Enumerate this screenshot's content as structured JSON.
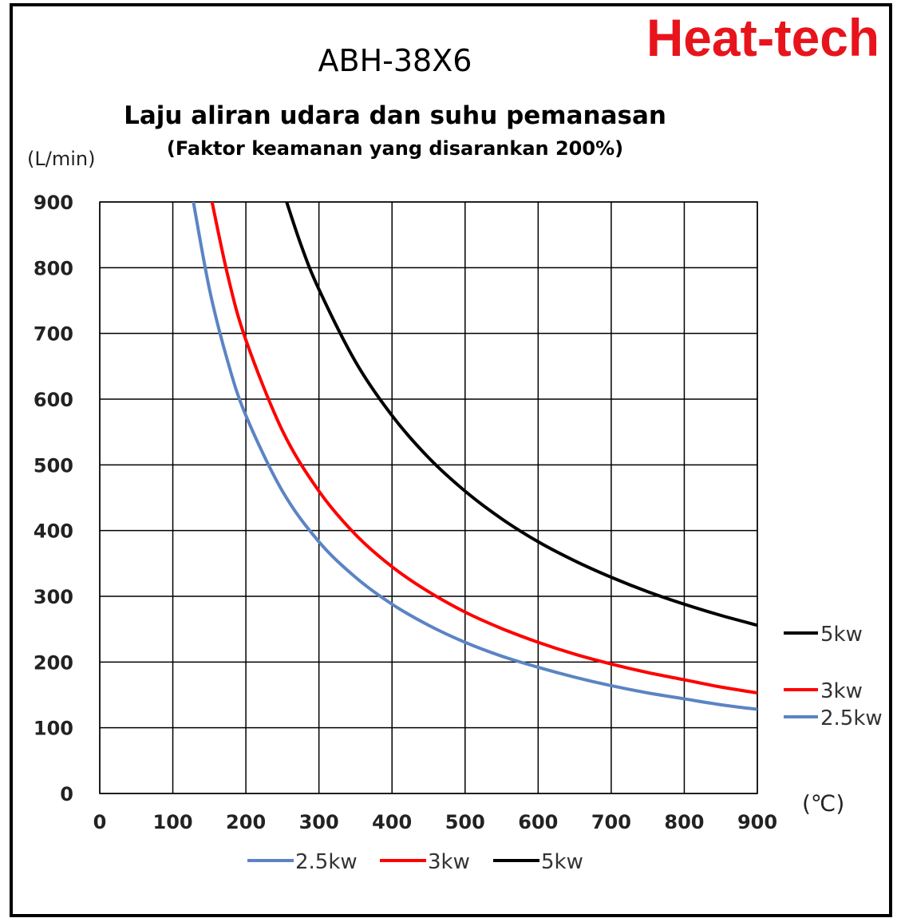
{
  "brand": {
    "text": "Heat-tech",
    "color": "#e8141c"
  },
  "chart_data": {
    "type": "line",
    "title": "ABH-38X6",
    "subtitle": "Laju aliran udara dan suhu pemanasan",
    "note": "(Faktor keamanan yang disarankan 200%)",
    "xlabel": "(℃)",
    "ylabel": "(L/min)",
    "xlim": [
      0,
      900
    ],
    "ylim": [
      0,
      900
    ],
    "xticks": [
      "0",
      "100",
      "200",
      "300",
      "400",
      "500",
      "600",
      "700",
      "800",
      "900"
    ],
    "yticks": [
      "0",
      "100",
      "200",
      "300",
      "400",
      "500",
      "600",
      "700",
      "800",
      "900"
    ],
    "grid": true,
    "legend": "bottom",
    "series": [
      {
        "name": "2.5kw",
        "color": "#5b84c4",
        "end_label": "2.5kw",
        "x": [
          125,
          150,
          175,
          200,
          250,
          300,
          350,
          400,
          450,
          500,
          550,
          600,
          650,
          700,
          750,
          800,
          850,
          900
        ],
        "y": [
          920,
          768,
          658,
          575,
          460,
          383,
          329,
          288,
          256,
          230,
          209,
          192,
          177,
          164,
          153,
          144,
          135,
          128
        ]
      },
      {
        "name": "3kw",
        "color": "#ff0000",
        "end_label": "3kw",
        "x": [
          150,
          175,
          200,
          250,
          300,
          350,
          400,
          450,
          500,
          550,
          600,
          650,
          700,
          750,
          800,
          850,
          900
        ],
        "y": [
          920,
          789,
          690,
          552,
          460,
          394,
          345,
          307,
          276,
          251,
          230,
          212,
          197,
          184,
          173,
          162,
          153
        ]
      },
      {
        "name": "5kw",
        "color": "#000000",
        "end_label": "5kw",
        "x": [
          250,
          275,
          300,
          350,
          400,
          450,
          500,
          550,
          600,
          650,
          700,
          750,
          800,
          850,
          900
        ],
        "y": [
          920,
          836,
          767,
          657,
          575,
          511,
          460,
          418,
          383,
          354,
          329,
          307,
          288,
          271,
          256
        ]
      }
    ]
  }
}
